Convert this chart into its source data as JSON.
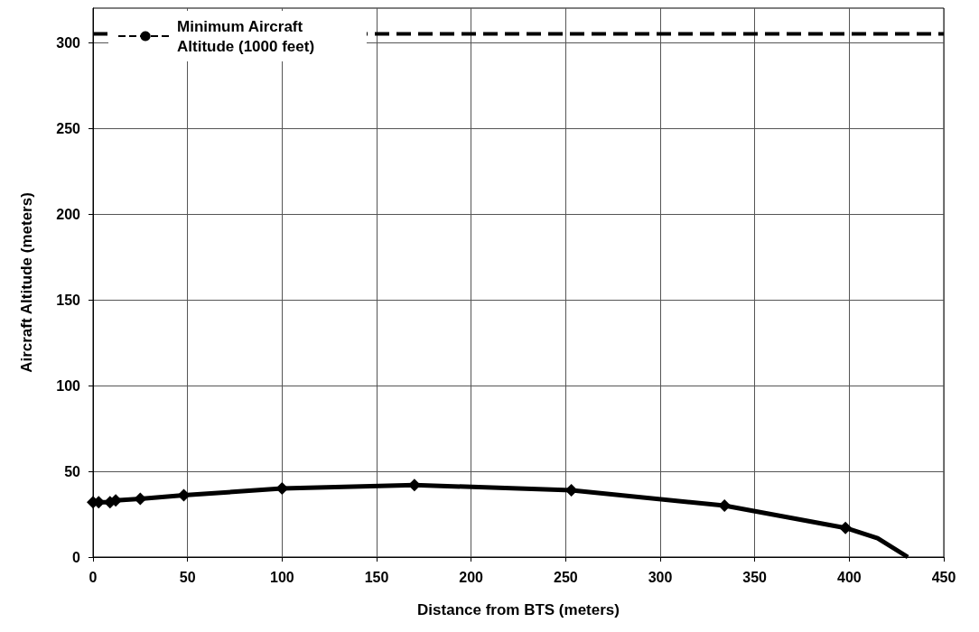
{
  "chart_data": {
    "type": "line",
    "xlabel": "Distance from BTS (meters)",
    "ylabel": "Aircraft Altitude (meters)",
    "xlim": [
      0,
      450
    ],
    "xticks": [
      0,
      50,
      100,
      150,
      200,
      250,
      300,
      350,
      400,
      450
    ],
    "ylim": [
      0,
      320
    ],
    "yticks": [
      0,
      50,
      100,
      150,
      200,
      250,
      300
    ],
    "grid": true,
    "legend": "top left",
    "series": [
      {
        "color": "#000000",
        "marker": "diamond",
        "line_style": "solid",
        "x": [
          0,
          3,
          9,
          12,
          25,
          48,
          100,
          170,
          253,
          334,
          398
        ],
        "values": [
          32,
          32,
          32,
          33,
          34,
          36,
          40,
          42,
          39,
          30,
          17
        ]
      },
      {
        "color": "#000000",
        "marker": "none",
        "line_style": "solid",
        "x": [
          398,
          415,
          431
        ],
        "values": [
          17,
          11,
          0
        ]
      },
      {
        "name": "Minimum Aircraft Altitude (1000 feet)",
        "color": "#000000",
        "marker": "none",
        "line_style": "dashed",
        "x": [
          0,
          450
        ],
        "values": [
          305,
          305
        ]
      }
    ]
  }
}
